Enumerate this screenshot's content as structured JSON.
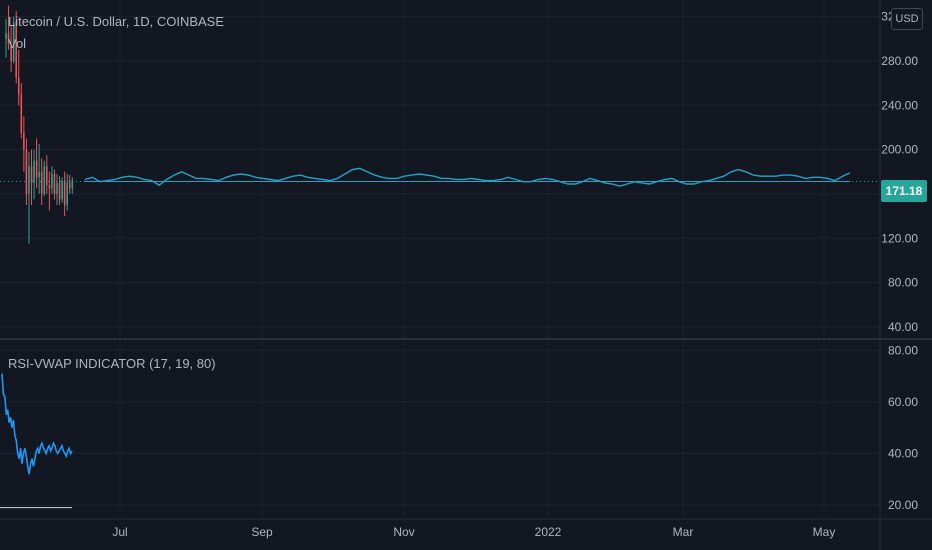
{
  "header": {
    "title": "Litecoin / U.S. Dollar, 1D, COINBASE",
    "volume_label": "Vol",
    "currency": "USD"
  },
  "indicator": {
    "label": "RSI-VWAP INDICATOR (17, 19, 80)"
  },
  "colors": {
    "background": "#131722",
    "grid": "#1e222d",
    "candle_up": "#26a69a",
    "candle_down": "#ef5350",
    "vwap_line": "#22a3c8",
    "rsi_line": "#2196f3",
    "price_tag": "#26a69a",
    "text": "#b2b5be"
  },
  "chart_data": [
    {
      "type": "line",
      "title": "Litecoin / U.S. Dollar, 1D, COINBASE",
      "yticks": [
        "40.00",
        "80.00",
        "120.00",
        "160.00",
        "200.00",
        "240.00",
        "280.00",
        "320.00"
      ],
      "ylim": [
        30,
        335
      ],
      "xticks": [
        "Jul",
        "Sep",
        "Nov",
        "2022",
        "Mar",
        "May"
      ],
      "last_price": "171.18",
      "last_price_value": 171.18,
      "candles": [
        [
          300,
          318,
          283,
          305
        ],
        [
          305,
          330,
          290,
          295
        ],
        [
          295,
          312,
          270,
          280
        ],
        [
          280,
          320,
          278,
          315
        ],
        [
          315,
          325,
          260,
          265
        ],
        [
          265,
          290,
          240,
          250
        ],
        [
          250,
          260,
          210,
          215
        ],
        [
          215,
          230,
          180,
          200
        ],
        [
          200,
          210,
          150,
          160
        ],
        [
          160,
          198,
          115,
          185
        ],
        [
          185,
          200,
          150,
          170
        ],
        [
          170,
          200,
          155,
          190
        ],
        [
          190,
          210,
          165,
          175
        ],
        [
          175,
          205,
          160,
          180
        ],
        [
          180,
          192,
          150,
          160
        ],
        [
          160,
          190,
          158,
          185
        ],
        [
          185,
          195,
          160,
          168
        ],
        [
          168,
          180,
          145,
          165
        ],
        [
          165,
          185,
          160,
          178
        ],
        [
          178,
          182,
          155,
          160
        ],
        [
          160,
          178,
          150,
          170
        ],
        [
          170,
          176,
          150,
          155
        ],
        [
          155,
          175,
          152,
          172
        ],
        [
          172,
          180,
          140,
          150
        ],
        [
          150,
          178,
          145,
          170
        ],
        [
          170,
          177,
          160,
          165
        ],
        [
          165,
          175,
          160,
          172
        ]
      ],
      "vwap_line": [
        173,
        175,
        171,
        172,
        173,
        175,
        176,
        175,
        173,
        172,
        168,
        173,
        177,
        180,
        177,
        174,
        174,
        173,
        172,
        175,
        177,
        178,
        177,
        175,
        174,
        173,
        172,
        174,
        176,
        177,
        175,
        174,
        173,
        172,
        174,
        178,
        182,
        183,
        180,
        177,
        175,
        174,
        174,
        176,
        177,
        178,
        177,
        176,
        174,
        174,
        173,
        173,
        174,
        173,
        172,
        172,
        173,
        175,
        173,
        171,
        171,
        173,
        174,
        173,
        171,
        169,
        169,
        171,
        174,
        172,
        170,
        169,
        167,
        169,
        171,
        170,
        169,
        171,
        173,
        174,
        171,
        169,
        169,
        171,
        172,
        174,
        176,
        180,
        182,
        180,
        177,
        176,
        176,
        176,
        177,
        177,
        176,
        174,
        175,
        175,
        174,
        172,
        176,
        179
      ],
      "reference_line": 171.18
    },
    {
      "type": "line",
      "title": "RSI-VWAP INDICATOR (17, 19, 80)",
      "yticks": [
        "20.00",
        "40.00",
        "60.00",
        "80.00"
      ],
      "ylim": [
        15,
        84
      ],
      "series": [
        {
          "values": [
            71,
            63,
            62,
            55,
            57,
            52,
            54,
            50,
            53,
            47,
            45,
            40,
            38,
            42,
            36,
            40,
            42,
            39,
            35,
            32,
            36,
            38,
            35,
            38,
            41,
            42,
            40,
            43,
            44,
            42,
            41,
            40,
            42,
            43,
            41,
            42,
            44,
            43,
            41,
            40,
            41,
            42,
            43,
            41,
            40,
            39,
            41,
            42,
            40,
            41
          ]
        }
      ],
      "level_line": 19
    }
  ]
}
